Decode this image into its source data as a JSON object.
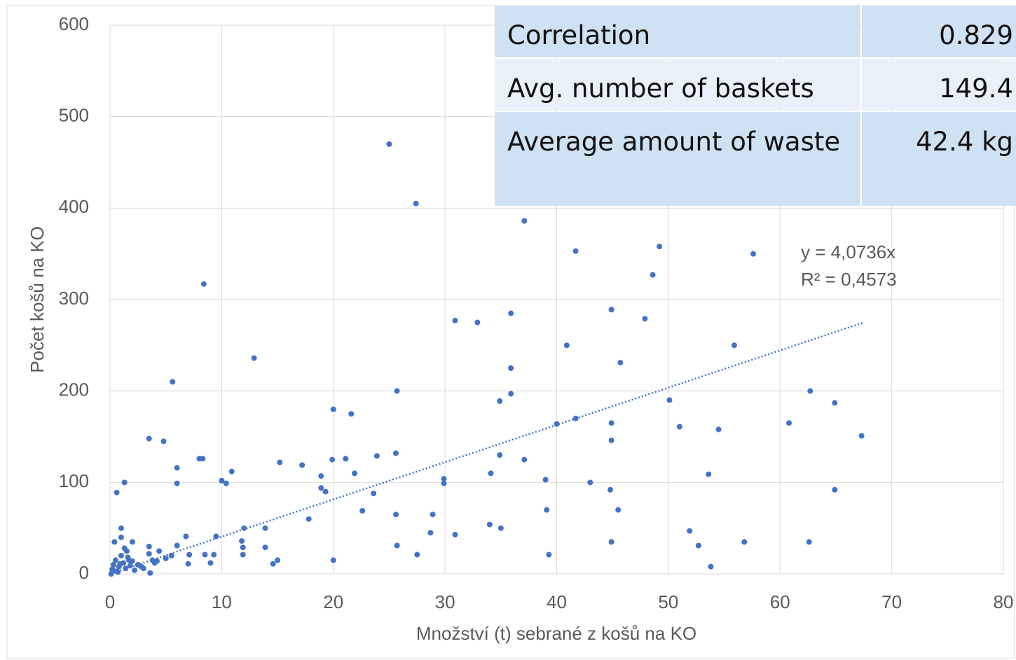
{
  "chart_data": {
    "type": "scatter",
    "xlabel": "Množství (t) sebrané z košů na KO",
    "ylabel": "Počet košů na KO",
    "xlim": [
      0,
      80
    ],
    "xticks": [
      0,
      10,
      20,
      30,
      40,
      50,
      60,
      70,
      80
    ],
    "ylim": [
      0,
      600
    ],
    "yticks": [
      0,
      100,
      200,
      300,
      400,
      500,
      600
    ],
    "grid": true,
    "color": "#4472c4",
    "x": [
      25.0,
      27.4,
      37.1,
      41.7,
      49.2,
      57.6,
      48.6,
      8.4,
      44.9,
      35.9,
      30.9,
      32.9,
      47.9,
      40.9,
      55.9,
      45.7,
      12.9,
      35.9,
      5.6,
      25.7,
      62.7,
      35.9,
      34.9,
      50.1,
      64.9,
      20.0,
      21.6,
      41.7,
      40.0,
      44.9,
      60.8,
      51.0,
      54.5,
      67.3,
      3.5,
      4.8,
      44.9,
      25.6,
      34.9,
      23.9,
      8.0,
      8.3,
      19.9,
      21.1,
      37.1,
      15.2,
      17.2,
      6.0,
      10.9,
      21.9,
      34.1,
      53.6,
      18.9,
      29.9,
      39.0,
      1.3,
      10.0,
      10.4,
      6.0,
      29.9,
      43.0,
      18.9,
      19.3,
      44.8,
      64.9,
      0.6,
      23.6,
      39.1,
      45.5,
      22.6,
      25.6,
      28.9,
      17.8,
      12.0,
      13.9,
      34.0,
      35.0,
      51.9,
      28.7,
      30.9,
      6.8,
      9.5,
      11.8,
      11.9,
      44.9,
      56.8,
      62.6,
      25.7,
      52.7,
      13.9,
      6.0,
      27.5,
      39.3,
      11.9,
      8.5,
      9.3,
      7.1,
      7.0,
      9.0,
      15.0,
      14.6,
      20.0,
      53.8,
      0.2,
      0.3,
      0.5,
      0.6,
      0.8,
      1.0,
      1.0,
      1.0,
      1.2,
      1.4,
      1.5,
      1.6,
      1.8,
      2.0,
      2.0,
      2.2,
      2.5,
      3.0,
      3.5,
      3.5,
      3.6,
      4.0,
      4.4,
      5.0,
      5.5,
      0.1,
      0.4,
      0.7,
      1.3,
      1.7,
      0.9,
      2.8,
      3.8,
      4.2
    ],
    "values": [
      470,
      405,
      386,
      353,
      358,
      350,
      327,
      317,
      289,
      285,
      277,
      275,
      279,
      250,
      250,
      231,
      236,
      225,
      210,
      200,
      200,
      197,
      189,
      190,
      187,
      180,
      175,
      170,
      164,
      165,
      165,
      161,
      158,
      151,
      148,
      145,
      146,
      132,
      130,
      129,
      126,
      126,
      125,
      126,
      125,
      122,
      119,
      116,
      112,
      110,
      110,
      109,
      107,
      104,
      103,
      100,
      102,
      99,
      99,
      99,
      100,
      94,
      90,
      92,
      92,
      89,
      88,
      70,
      70,
      69,
      65,
      65,
      60,
      50,
      50,
      54,
      50,
      47,
      45,
      43,
      41,
      41,
      36,
      29,
      35,
      35,
      35,
      31,
      31,
      29,
      31,
      21,
      21,
      21,
      21,
      21,
      21,
      11,
      12,
      15,
      11,
      15,
      8,
      5,
      10,
      15,
      3,
      8,
      20,
      50,
      40,
      12,
      6,
      25,
      18,
      9,
      35,
      14,
      4,
      10,
      6,
      30,
      22,
      1,
      12,
      25,
      17,
      20,
      0,
      35,
      2,
      28,
      15,
      11,
      8,
      15,
      14
    ],
    "trendline": {
      "label": "y = 4,0736x",
      "r2_label": "R² = 0,4573",
      "slope": 4.0736,
      "x_range": [
        0,
        67.4
      ]
    }
  },
  "table": {
    "rows": [
      [
        "Correlation",
        "0.829"
      ],
      [
        "Avg. number of baskets",
        "149.4"
      ],
      [
        "Average amount of waste",
        "42.4 kg"
      ]
    ]
  }
}
